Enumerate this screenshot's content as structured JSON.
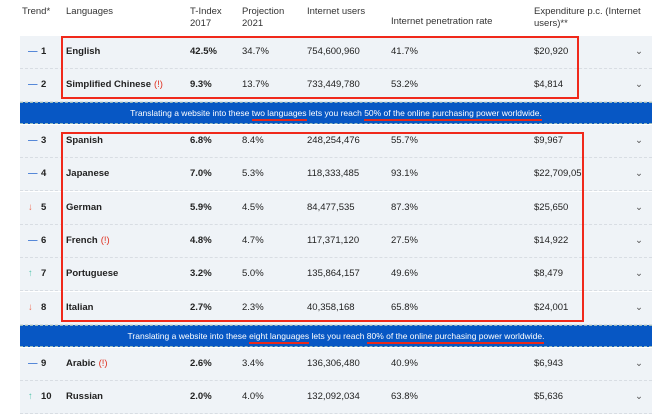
{
  "header": {
    "trend": "Trend*",
    "languages": "Languages",
    "tindex": "T-Index 2017",
    "projection": "Projection 2021",
    "users": "Internet users",
    "penetration": "Internet penetration rate",
    "expenditure": "Expenditure p.c. (Internet users)**"
  },
  "colors": {
    "banner": "#0757c4",
    "highlight": "#f0291b",
    "up": "#5cc8b0",
    "down": "#f06a50",
    "same": "#4a7fd6"
  },
  "rows": [
    {
      "trend": "same",
      "rank": "1",
      "lang": "English",
      "excl": "",
      "tindex": "42.5%",
      "proj": "34.7%",
      "users": "754,600,960",
      "pen": "41.7%",
      "exp": "$20,920"
    },
    {
      "trend": "same",
      "rank": "2",
      "lang": "Simplified Chinese",
      "excl": "(!)",
      "tindex": "9.3%",
      "proj": "13.7%",
      "users": "733,449,780",
      "pen": "53.2%",
      "exp": "$4,814"
    },
    {
      "trend": "same",
      "rank": "3",
      "lang": "Spanish",
      "excl": "",
      "tindex": "6.8%",
      "proj": "8.4%",
      "users": "248,254,476",
      "pen": "55.7%",
      "exp": "$9,967"
    },
    {
      "trend": "same",
      "rank": "4",
      "lang": "Japanese",
      "excl": "",
      "tindex": "7.0%",
      "proj": "5.3%",
      "users": "118,333,485",
      "pen": "93.1%",
      "exp": "$22,709,05"
    },
    {
      "trend": "down",
      "rank": "5",
      "lang": "German",
      "excl": "",
      "tindex": "5.9%",
      "proj": "4.5%",
      "users": "84,477,535",
      "pen": "87.3%",
      "exp": "$25,650"
    },
    {
      "trend": "same",
      "rank": "6",
      "lang": "French",
      "excl": "(!)",
      "tindex": "4.8%",
      "proj": "4.7%",
      "users": "117,371,120",
      "pen": "27.5%",
      "exp": "$14,922"
    },
    {
      "trend": "up",
      "rank": "7",
      "lang": "Portuguese",
      "excl": "",
      "tindex": "3.2%",
      "proj": "5.0%",
      "users": "135,864,157",
      "pen": "49.6%",
      "exp": "$8,479"
    },
    {
      "trend": "down",
      "rank": "8",
      "lang": "Italian",
      "excl": "",
      "tindex": "2.7%",
      "proj": "2.3%",
      "users": "40,358,168",
      "pen": "65.8%",
      "exp": "$24,001"
    },
    {
      "trend": "same",
      "rank": "9",
      "lang": "Arabic",
      "excl": "(!)",
      "tindex": "2.6%",
      "proj": "3.4%",
      "users": "136,306,480",
      "pen": "40.9%",
      "exp": "$6,943"
    },
    {
      "trend": "up",
      "rank": "10",
      "lang": "Russian",
      "excl": "",
      "tindex": "2.0%",
      "proj": "4.0%",
      "users": "132,092,034",
      "pen": "63.8%",
      "exp": "$5,636"
    }
  ],
  "banners": [
    {
      "pre": "Translating a website into these ",
      "hl1": "two languages",
      "mid": " lets you reach ",
      "hl2": "50% of the online purchasing power worldwide."
    },
    {
      "pre": "Translating a website into these ",
      "hl1": "eight languages",
      "mid": " lets you reach ",
      "hl2": "80% of the online purchasing power worldwide."
    }
  ]
}
